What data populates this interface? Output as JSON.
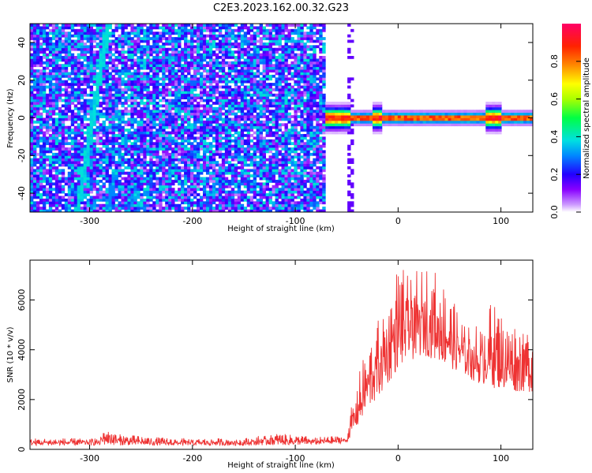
{
  "title": "C2E3.2023.162.00.32.G23",
  "chart_data": [
    {
      "type": "heatmap",
      "xlabel": "Height of straight line (km)",
      "ylabel": "Frequency (Hz)",
      "xlim": [
        -358,
        131
      ],
      "ylim": [
        -50,
        50
      ],
      "xticks": [
        -300,
        -200,
        -100,
        0,
        100
      ],
      "yticks": [
        -40,
        -20,
        0,
        20,
        40
      ],
      "colorbar": {
        "label": "Normalized spectral amplitude",
        "range": [
          0,
          1
        ],
        "ticks": [
          0.0,
          0.2,
          0.4,
          0.6,
          0.8
        ],
        "colors": [
          "#ffffff",
          "#cc99ff",
          "#8800ff",
          "#2200ff",
          "#0088ff",
          "#00e0e0",
          "#00ff44",
          "#aaff00",
          "#ffff00",
          "#ff8800",
          "#ff2200",
          "#ff0066"
        ]
      },
      "features": {
        "noise_region_height_km": [
          -358,
          -72
        ],
        "noise_amplitude": 0.25,
        "stripe_line": {
          "x_at_bottom": -312,
          "x_at_top": -282,
          "amplitude": 0.35
        },
        "secondary_line": {
          "x_range": [
            -282,
            -275
          ],
          "freq_range": [
            -50,
            -28
          ]
        },
        "bright_band": {
          "height_km": [
            -70,
            131
          ],
          "freq_hz": 0,
          "halfwidth_hz": 2.5,
          "peak_amplitude": 1.0
        },
        "widened_segments_km": [
          [
            -70,
            -45
          ],
          [
            -25,
            -17
          ],
          [
            85,
            100
          ]
        ]
      }
    },
    {
      "type": "line",
      "xlabel": "Height of straight line (km)",
      "ylabel": "SNR (10 * v/v)",
      "xlim": [
        -358,
        131
      ],
      "ylim": [
        0,
        7600
      ],
      "xticks": [
        -300,
        -200,
        -100,
        0,
        100
      ],
      "yticks": [
        0,
        2000,
        4000,
        6000
      ],
      "color": "#ee3333",
      "envelope": {
        "x": [
          -358,
          -300,
          -290,
          -285,
          -270,
          -220,
          -150,
          -120,
          -80,
          -50,
          -45,
          -40,
          -30,
          -20,
          -10,
          0,
          10,
          20,
          30,
          40,
          50,
          60,
          70,
          80,
          90,
          100,
          110,
          120,
          131
        ],
        "y_low": [
          150,
          160,
          150,
          180,
          160,
          150,
          150,
          170,
          180,
          250,
          600,
          800,
          1500,
          2000,
          2600,
          3200,
          3500,
          3700,
          3700,
          3500,
          3300,
          3000,
          2800,
          2600,
          2500,
          2400,
          2300,
          2300,
          2300
        ],
        "y_high": [
          450,
          450,
          500,
          950,
          600,
          450,
          450,
          650,
          500,
          550,
          1800,
          2800,
          4200,
          5200,
          6000,
          7500,
          7000,
          7200,
          7600,
          7000,
          6200,
          5500,
          5200,
          5000,
          6000,
          5500,
          5000,
          5300,
          4500
        ]
      }
    }
  ]
}
